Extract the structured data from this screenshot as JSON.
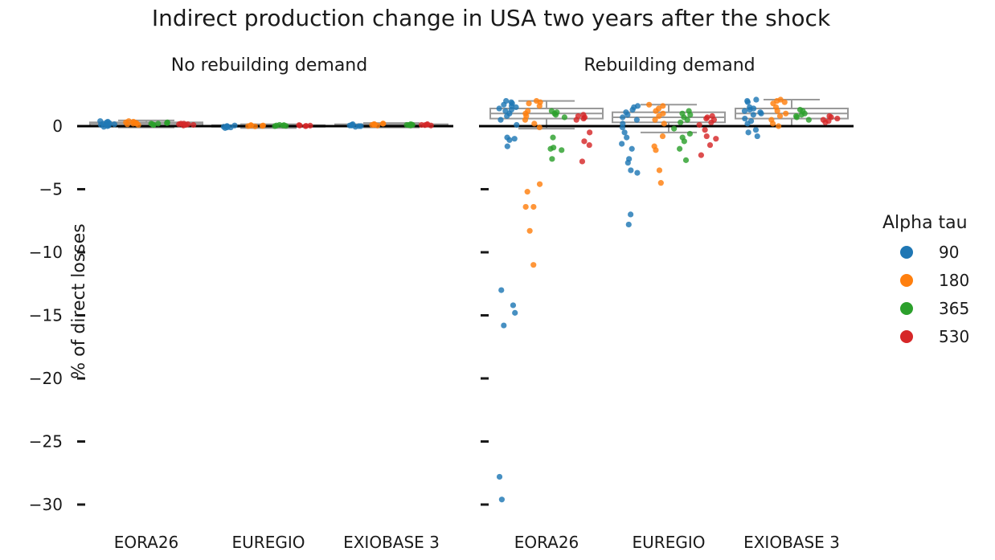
{
  "title": "Indirect production change in USA two years after the shock",
  "ylabel": "% of direct losses",
  "legend": {
    "title": "Alpha tau",
    "entries": [
      {
        "label": "90",
        "color": "#1f77b4"
      },
      {
        "label": "180",
        "color": "#ff7f0e"
      },
      {
        "label": "365",
        "color": "#2ca02c"
      },
      {
        "label": "530",
        "color": "#d62728"
      }
    ]
  },
  "chart_data": {
    "type": "scatter",
    "subtype": "strip plot with box plots, faceted",
    "ylim": [
      -32,
      3
    ],
    "yticks": [
      0,
      -5,
      -10,
      -15,
      -20,
      -25,
      -30
    ],
    "ytick_labels": [
      "0",
      "−5",
      "−10",
      "−15",
      "−20",
      "−25",
      "−30"
    ],
    "reference_line_y": 0,
    "legend_position": "right",
    "grid": false,
    "hue_order": [
      "90",
      "180",
      "365",
      "530"
    ],
    "facets": [
      {
        "title": "No rebuilding demand",
        "categories": [
          "EORA26",
          "EUREGIO",
          "EXIOBASE 3"
        ],
        "groups": [
          {
            "category": "EORA26",
            "box": {
              "q1": 0.05,
              "median": 0.2,
              "q3": 0.3,
              "whisker_low": -0.1,
              "whisker_high": 0.45
            },
            "points": {
              "90": [
                0.0,
                0.05,
                0.1,
                0.2,
                0.3,
                0.35,
                0.4,
                0.15,
                0.25,
                0.1,
                -0.05
              ],
              "180": [
                0.1,
                0.2,
                0.3,
                0.35,
                0.4,
                0.25,
                0.15,
                0.3,
                0.2
              ],
              "365": [
                0.1,
                0.2,
                0.25,
                0.3,
                0.15,
                0.2,
                0.25,
                0.1
              ],
              "530": [
                0.05,
                0.1,
                0.15,
                0.2,
                0.15,
                0.1,
                0.2
              ]
            }
          },
          {
            "category": "EUREGIO",
            "box": {
              "q1": -0.05,
              "median": 0.02,
              "q3": 0.08,
              "whisker_low": -0.15,
              "whisker_high": 0.15
            },
            "points": {
              "90": [
                -0.15,
                -0.1,
                0.0,
                -0.05,
                0.05,
                -0.1,
                0.0
              ],
              "180": [
                0.0,
                0.05,
                0.08,
                0.02,
                -0.02,
                0.05
              ],
              "365": [
                0.05,
                0.1,
                0.02,
                0.08,
                0.0,
                0.05
              ],
              "530": [
                0.02,
                0.05,
                0.08,
                0.0,
                0.04
              ]
            }
          },
          {
            "category": "EXIOBASE 3",
            "box": {
              "q1": 0.0,
              "median": 0.08,
              "q3": 0.15,
              "whisker_low": -0.1,
              "whisker_high": 0.25
            },
            "points": {
              "90": [
                -0.05,
                0.0,
                0.05,
                0.1,
                0.15,
                0.05,
                0.0,
                0.1
              ],
              "180": [
                0.05,
                0.1,
                0.15,
                0.2,
                0.1,
                0.15,
                0.2
              ],
              "365": [
                0.05,
                0.1,
                0.12,
                0.15,
                0.08,
                0.1
              ],
              "530": [
                0.05,
                0.1,
                0.12,
                0.15,
                0.08
              ]
            }
          }
        ]
      },
      {
        "title": "Rebuilding demand",
        "categories": [
          "EORA26",
          "EUREGIO",
          "EXIOBASE 3"
        ],
        "groups": [
          {
            "category": "EORA26",
            "box": {
              "q1": 0.6,
              "median": 1.0,
              "q3": 1.4,
              "whisker_low": -0.2,
              "whisker_high": 2.0
            },
            "points": {
              "90": [
                2.0,
                1.9,
                1.8,
                1.7,
                1.5,
                1.4,
                1.2,
                1.0,
                0.8,
                0.5,
                0.1,
                -0.9,
                -1.0,
                -1.1,
                -1.6,
                -13.0,
                -14.2,
                -14.8,
                -15.8,
                -27.8,
                -29.6,
                1.6,
                1.3
              ],
              "180": [
                2.0,
                1.9,
                1.8,
                1.6,
                1.2,
                1.0,
                0.8,
                0.5,
                0.2,
                -0.1,
                -4.6,
                -5.2,
                -6.4,
                -6.4,
                -8.3,
                -11.0
              ],
              "365": [
                1.2,
                1.1,
                1.0,
                0.9,
                0.7,
                -0.9,
                -1.7,
                -1.8,
                -1.9,
                -2.6
              ],
              "530": [
                0.9,
                0.8,
                0.7,
                0.6,
                0.5,
                -0.5,
                -1.2,
                -1.5,
                -2.8
              ]
            }
          },
          {
            "category": "EUREGIO",
            "box": {
              "q1": 0.3,
              "median": 0.7,
              "q3": 1.1,
              "whisker_low": -0.5,
              "whisker_high": 1.7
            },
            "points": {
              "90": [
                1.6,
                1.5,
                1.3,
                1.1,
                0.9,
                0.7,
                0.5,
                0.2,
                -0.1,
                -0.5,
                -0.9,
                -1.4,
                -1.8,
                -2.6,
                -2.9,
                -3.5,
                -3.7,
                -7.0,
                -7.8
              ],
              "180": [
                1.7,
                1.6,
                1.4,
                1.2,
                1.0,
                0.8,
                0.5,
                0.2,
                -0.8,
                -1.6,
                -1.9,
                -3.5,
                -4.5
              ],
              "365": [
                1.2,
                1.0,
                0.9,
                0.7,
                0.5,
                0.3,
                -0.2,
                -0.6,
                -0.9,
                -1.2,
                -1.8,
                -2.7
              ],
              "530": [
                0.8,
                0.7,
                0.6,
                0.5,
                0.3,
                0.1,
                -0.3,
                -0.8,
                -1.0,
                -1.5,
                -2.3
              ]
            }
          },
          {
            "category": "EXIOBASE 3",
            "box": {
              "q1": 0.6,
              "median": 1.0,
              "q3": 1.4,
              "whisker_low": 0.0,
              "whisker_high": 2.1
            },
            "points": {
              "90": [
                2.1,
                2.0,
                1.9,
                1.4,
                1.3,
                1.2,
                1.0,
                0.9,
                0.6,
                0.4,
                0.2,
                -0.3,
                -0.5,
                -0.8,
                1.5,
                1.1
              ],
              "180": [
                2.1,
                2.0,
                1.9,
                1.8,
                1.5,
                1.2,
                1.0,
                0.8,
                0.5,
                0.2,
                0.0
              ],
              "365": [
                1.3,
                1.2,
                1.0,
                0.9,
                0.8,
                0.7,
                0.5
              ],
              "530": [
                0.8,
                0.7,
                0.6,
                0.5,
                0.4,
                0.3
              ]
            }
          }
        ]
      }
    ]
  }
}
